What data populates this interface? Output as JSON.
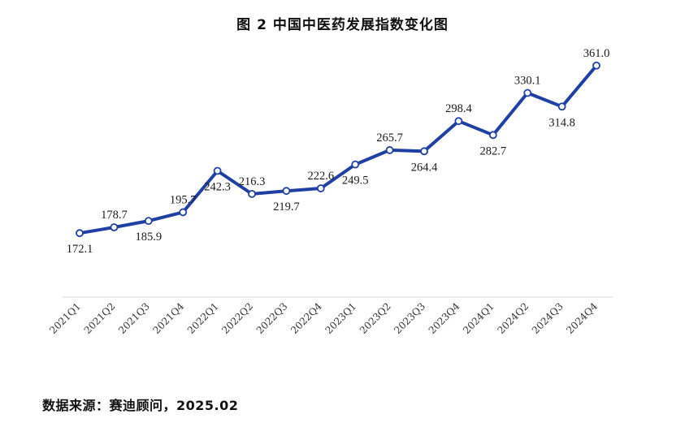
{
  "title": "图 2  中国中医药发展指数变化图",
  "source": "数据来源：赛迪顾问，2025.02",
  "colors": {
    "line": "#1f3fa3",
    "marker_fill": "#ffffff",
    "axis": "#d9d9d9"
  },
  "chart_data": {
    "type": "line",
    "title": "图 2  中国中医药发展指数变化图",
    "xlabel": "",
    "ylabel": "",
    "ylim": [
      100,
      380
    ],
    "grid": false,
    "legend": "none",
    "categories": [
      "2021Q1",
      "2021Q2",
      "2021Q3",
      "2021Q4",
      "2022Q1",
      "2022Q2",
      "2022Q3",
      "2022Q4",
      "2023Q1",
      "2023Q2",
      "2023Q3",
      "2023Q4",
      "2024Q1",
      "2024Q2",
      "2024Q3",
      "2024Q4"
    ],
    "series": [
      {
        "values": [
          172.1,
          178.7,
          185.9,
          195.7,
          242.3,
          216.3,
          219.7,
          222.6,
          249.5,
          265.7,
          264.4,
          298.4,
          282.7,
          330.1,
          314.8,
          361.0
        ],
        "labels": [
          "172.1",
          "178.7",
          "185.9",
          "195.7",
          "242.3",
          "216.3",
          "219.7",
          "222.6",
          "249.5",
          "265.7",
          "264.4",
          "298.4",
          "282.7",
          "330.1",
          "314.8",
          "361.0"
        ],
        "label_positions": [
          "below",
          "above",
          "below",
          "above",
          "below",
          "above",
          "below",
          "above",
          "below",
          "above",
          "below",
          "above",
          "below",
          "above",
          "below",
          "above"
        ]
      }
    ]
  }
}
